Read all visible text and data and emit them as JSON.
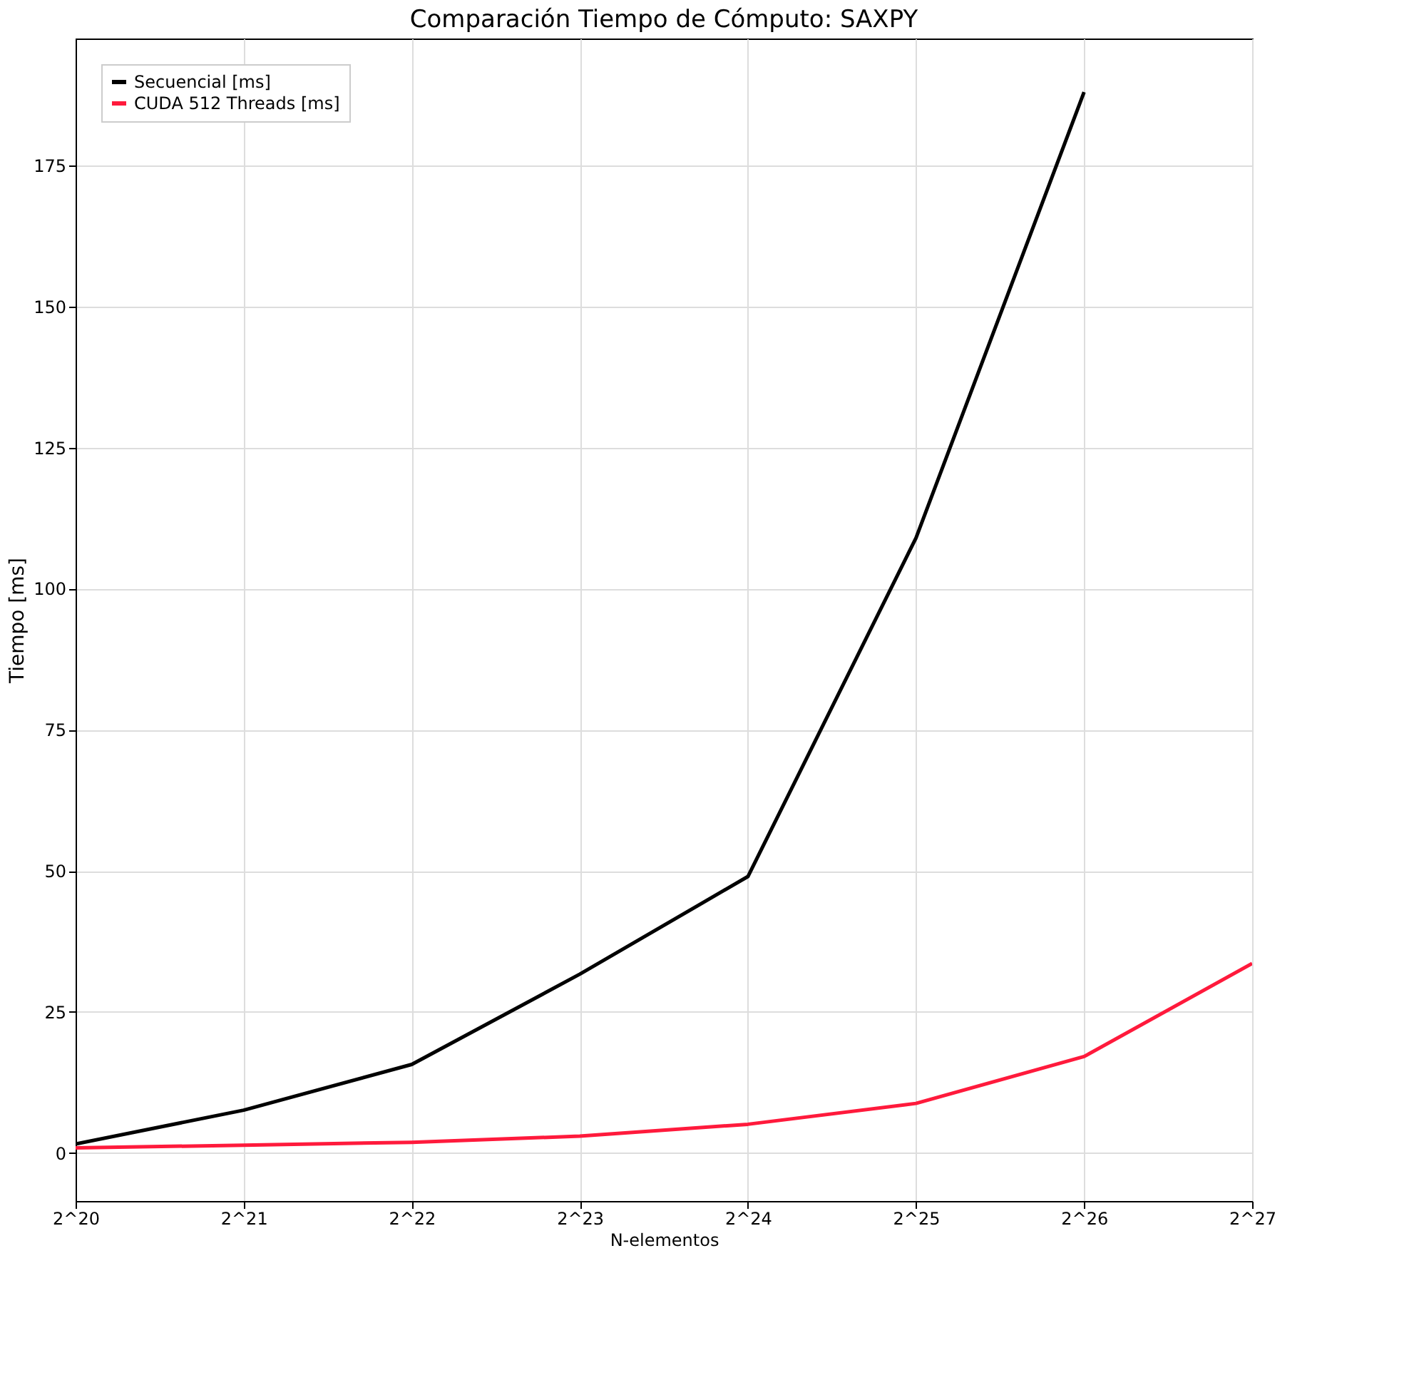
{
  "chart_data": {
    "type": "line",
    "title": "Comparación Tiempo de Cómputo: SAXPY",
    "xlabel": "N-elementos",
    "ylabel": "Tiempo [ms]",
    "categories": [
      "2^20",
      "2^21",
      "2^22",
      "2^23",
      "2^24",
      "2^25",
      "2^26",
      "2^27"
    ],
    "series": [
      {
        "name": "Secuencial [ms]",
        "color": "#000000",
        "values": [
          1.6,
          7.6,
          15.7,
          31.7,
          49,
          109,
          188,
          null
        ]
      },
      {
        "name": "CUDA 512 Threads [ms]",
        "color": "#ff1a3c",
        "values": [
          0.9,
          1.4,
          1.9,
          3.0,
          5.1,
          8.8,
          17.1,
          33.6
        ]
      }
    ],
    "ylim": [
      -8.5,
      197.5
    ],
    "yticks": [
      0,
      25,
      50,
      75,
      100,
      125,
      150,
      175
    ],
    "grid": true,
    "legend": "top left",
    "marker": "none",
    "line_style": "solid"
  }
}
